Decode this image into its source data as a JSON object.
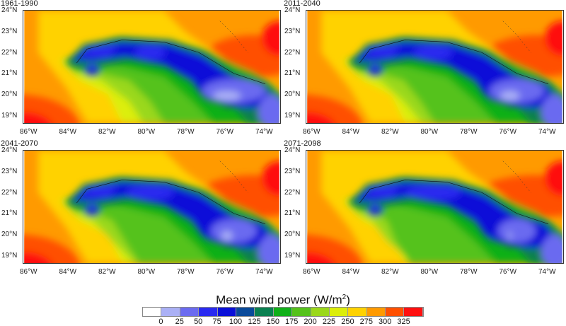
{
  "panels": [
    {
      "title": "1961-1990",
      "variant": 0
    },
    {
      "title": "2011-2040",
      "variant": 1
    },
    {
      "title": "2041-2070",
      "variant": 2
    },
    {
      "title": "2071-2098",
      "variant": 3
    }
  ],
  "lon_ticks": [
    "86°W",
    "84°W",
    "82°W",
    "80°W",
    "78°W",
    "76°W",
    "74°W"
  ],
  "lat_ticks": [
    "24°N",
    "23°N",
    "22°N",
    "21°N",
    "20°N",
    "19°N"
  ],
  "colorbar": {
    "title": "Mean wind power (W/m",
    "title_sup": "2",
    "title_end": ")",
    "labels": [
      "0",
      "25",
      "50",
      "75",
      "100",
      "125",
      "150",
      "175",
      "200",
      "225",
      "250",
      "275",
      "300",
      "325"
    ],
    "colors": [
      "#ffffff",
      "#aab0f5",
      "#6b6bf0",
      "#2a2af0",
      "#0a10d8",
      "#0a4a9a",
      "#0a8050",
      "#10b018",
      "#55c21a",
      "#9ad81a",
      "#dcee0a",
      "#ffd200",
      "#ff9a00",
      "#ff5000",
      "#ff1010"
    ]
  }
}
